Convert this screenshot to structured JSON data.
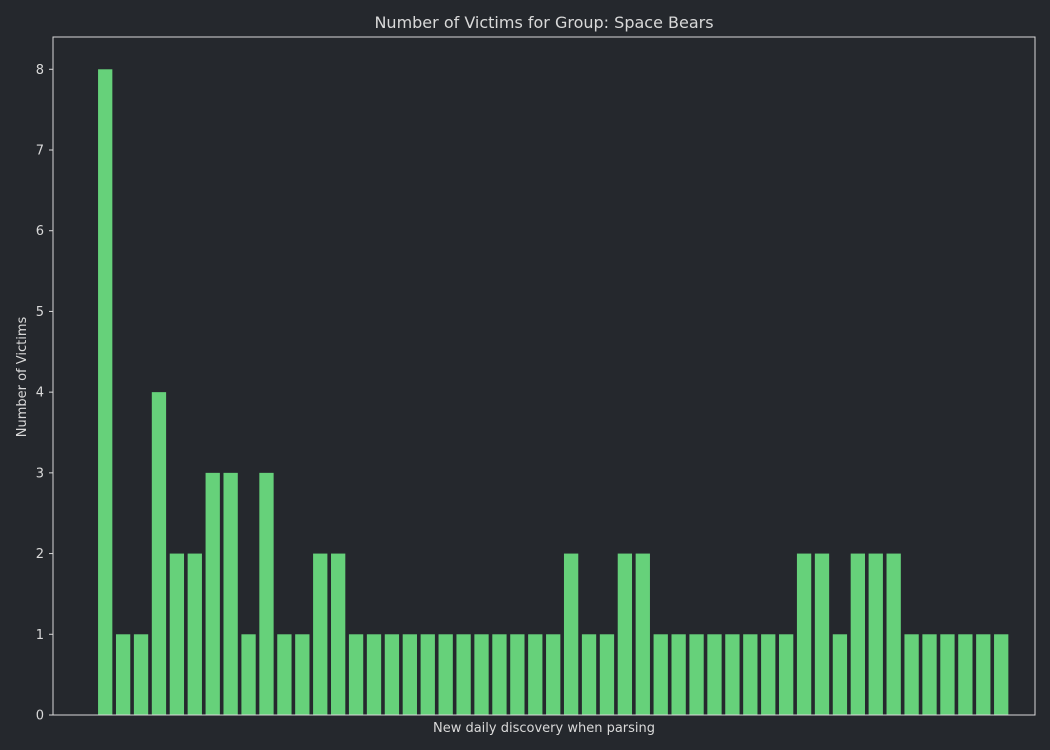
{
  "chart_data": {
    "type": "bar",
    "title": "Number of Victims for Group: Space Bears",
    "xlabel": "New daily discovery when parsing",
    "ylabel": "Number of Victims",
    "ylim": [
      0,
      8.4
    ],
    "yticks": [
      0,
      1,
      2,
      3,
      4,
      5,
      6,
      7,
      8
    ],
    "grid": false,
    "legend": "none",
    "values": [
      8,
      1,
      1,
      4,
      2,
      2,
      3,
      3,
      1,
      3,
      1,
      1,
      2,
      2,
      1,
      1,
      1,
      1,
      1,
      1,
      1,
      1,
      1,
      1,
      1,
      1,
      2,
      1,
      1,
      2,
      2,
      1,
      1,
      1,
      1,
      1,
      1,
      1,
      1,
      2,
      2,
      1,
      2,
      2,
      2,
      1,
      1,
      1,
      1,
      1,
      1
    ]
  },
  "colors": {
    "background": "#25282d",
    "bar": "#66d17a",
    "axis": "#d9d9d9",
    "text": "#d9d9d9"
  }
}
